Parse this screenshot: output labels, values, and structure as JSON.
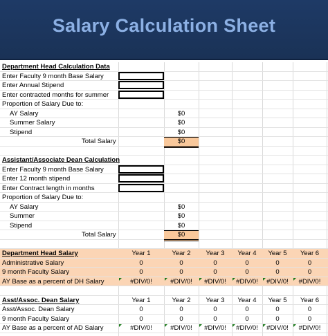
{
  "title": "Salary Calculation Sheet",
  "dept_head": {
    "header": "Department Head Calculation Data",
    "inputs": [
      "Enter Faculty 9 month Base Salary",
      "Enter Annual Stipend",
      "Enter contracted months for summer"
    ],
    "proportion_label": "Proportion of Salary Due to:",
    "items": [
      {
        "label": "AY Salary",
        "value": "$0"
      },
      {
        "label": "Summer Salary",
        "value": "$0"
      },
      {
        "label": "Stipend",
        "value": "$0"
      }
    ],
    "total_label": "Total Salary",
    "total_value": "$0"
  },
  "assoc_dean": {
    "header": "Assistant/Associate Dean Calculation",
    "inputs": [
      "Enter Faculty 9 month Base Salary",
      "Enter 12 month stipend",
      "Enter Contract length in months"
    ],
    "proportion_label": "Proportion of Salary Due to:",
    "items": [
      {
        "label": "AY Salary",
        "value": "$0"
      },
      {
        "label": "Summer",
        "value": "$0"
      },
      {
        "label": "Stipend",
        "value": "$0"
      }
    ],
    "total_label": "Total Salary",
    "total_value": "$0"
  },
  "years": [
    "Year 1",
    "Year 2",
    "Year 3",
    "Year 4",
    "Year 5",
    "Year 6"
  ],
  "dh_table": {
    "header": "Department Head Salary",
    "rows": [
      {
        "label": "Administrative Salary",
        "values": [
          "0",
          "0",
          "0",
          "0",
          "0",
          "0"
        ]
      },
      {
        "label": "9 month Faculty Salary",
        "values": [
          "0",
          "0",
          "0",
          "0",
          "0",
          "0"
        ]
      },
      {
        "label": "AY Base as a percent of DH Salary",
        "values": [
          "#DIV/0!",
          "#DIV/0!",
          "#DIV/0!",
          "#DIV/0!",
          "#DIV/0!",
          "#DIV/0!"
        ]
      }
    ]
  },
  "ad_table": {
    "header": "Asst/Assoc. Dean Salary",
    "rows": [
      {
        "label": "Asst/Assoc. Dean Salary",
        "values": [
          "0",
          "0",
          "0",
          "0",
          "0",
          "0"
        ]
      },
      {
        "label": "9 month Faculty Salary",
        "values": [
          "0",
          "0",
          "0",
          "0",
          "0",
          "0"
        ]
      },
      {
        "label": "AY Base as a percent of AD Salary",
        "values": [
          "#DIV/0!",
          "#DIV/0!",
          "#DIV/0!",
          "#DIV/0!",
          "#DIV/0!",
          "#DIV/0!"
        ]
      }
    ]
  }
}
